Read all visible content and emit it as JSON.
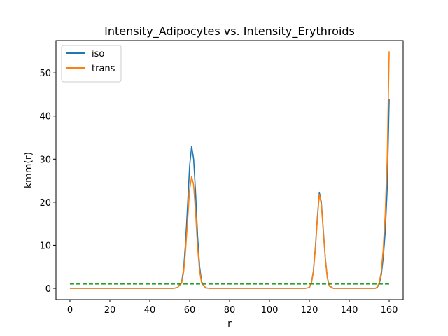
{
  "chart_data": {
    "type": "line",
    "title": "Intensity_Adipocytes vs. Intensity_Erythroids",
    "xlabel": "r",
    "ylabel": "kmm(r)",
    "xlim": [
      -7,
      167
    ],
    "ylim": [
      -2.6,
      57.5
    ],
    "xticks": [
      0,
      20,
      40,
      60,
      80,
      100,
      120,
      140,
      160
    ],
    "yticks": [
      0,
      10,
      20,
      30,
      40,
      50
    ],
    "grid": false,
    "legend_position": "upper left",
    "series": [
      {
        "name": "iso",
        "color": "#1f77b4",
        "style": "solid",
        "x": [
          0,
          52,
          54,
          56,
          57,
          58,
          59,
          60,
          61,
          62,
          63,
          64,
          65,
          66,
          68,
          70,
          118,
          120,
          121,
          122,
          123,
          124,
          125,
          126,
          127,
          128,
          129,
          130,
          132,
          153,
          154,
          155,
          156,
          157,
          158,
          159,
          160
        ],
        "y": [
          0,
          0,
          0.2,
          1.5,
          4.5,
          11,
          19.5,
          28.5,
          33,
          30,
          22,
          12,
          5,
          1.5,
          0.1,
          0,
          0,
          0.2,
          1.2,
          4,
          9.5,
          16.5,
          22.3,
          20,
          13.5,
          7,
          2.5,
          0.6,
          0,
          0,
          0.2,
          1,
          3,
          7,
          13,
          23,
          44
        ]
      },
      {
        "name": "trans",
        "color": "#ff7f0e",
        "style": "solid",
        "x": [
          0,
          52,
          54,
          56,
          57,
          58,
          59,
          60,
          61,
          62,
          63,
          64,
          65,
          66,
          68,
          70,
          118,
          120,
          121,
          122,
          123,
          124,
          125,
          126,
          127,
          128,
          129,
          130,
          132,
          153,
          154,
          155,
          156,
          157,
          158,
          159,
          160
        ],
        "y": [
          0,
          0,
          0.2,
          1.2,
          3.8,
          9,
          16,
          23,
          26,
          24,
          17.5,
          9.5,
          4,
          1.2,
          0.1,
          0,
          0,
          0.2,
          1.1,
          3.8,
          9,
          16,
          21.8,
          19.5,
          13,
          6.8,
          2.4,
          0.5,
          0,
          0,
          0.3,
          1.3,
          3.8,
          9,
          17,
          30,
          55
        ]
      },
      {
        "color": "#2ca02c",
        "style": "dashed",
        "x": [
          0,
          160
        ],
        "y": [
          1,
          1
        ]
      }
    ]
  }
}
